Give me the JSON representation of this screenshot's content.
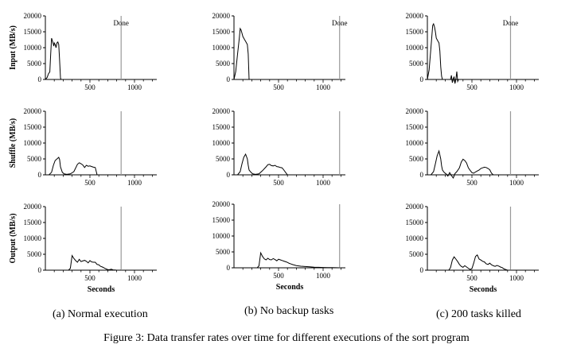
{
  "caption": "Figure 3: Data transfer rates over time for different executions of the sort program",
  "subcaptions": [
    "(a) Normal execution",
    "(b) No backup tasks",
    "(c) 200 tasks killed"
  ],
  "y_labels": [
    "Input (MB/s)",
    "Shuffle (MB/s)",
    "Output (MB/s)"
  ],
  "x_label": "Seconds",
  "done_label": "Done",
  "colors": {
    "line": "#000000",
    "done_line": "#999999"
  },
  "chart_data": [
    {
      "type": "line",
      "panel": "a-input",
      "ylabel": "Input (MB/s)",
      "xlabel": "",
      "xlim": [
        0,
        1250
      ],
      "ylim": [
        0,
        20000
      ],
      "xticks": [
        500,
        1000
      ],
      "yticks": [
        0,
        5000,
        10000,
        15000,
        20000
      ],
      "done_x": 850,
      "x": [
        0,
        20,
        35,
        50,
        60,
        70,
        80,
        90,
        95,
        100,
        110,
        120,
        130,
        140,
        150,
        160,
        170,
        175,
        180,
        190,
        200
      ],
      "y": [
        0,
        600,
        1800,
        2400,
        8000,
        13000,
        12000,
        11000,
        10500,
        11500,
        11000,
        10000,
        11500,
        11800,
        11000,
        6000,
        500,
        0,
        0,
        0,
        0
      ]
    },
    {
      "type": "line",
      "panel": "a-shuffle",
      "ylabel": "Shuffle (MB/s)",
      "xlabel": "",
      "xlim": [
        0,
        1250
      ],
      "ylim": [
        0,
        20000
      ],
      "xticks": [
        500,
        1000
      ],
      "yticks": [
        0,
        5000,
        10000,
        15000,
        20000
      ],
      "done_x": 850,
      "x": [
        0,
        40,
        70,
        90,
        110,
        130,
        150,
        160,
        170,
        190,
        210,
        240,
        280,
        320,
        360,
        380,
        400,
        420,
        440,
        460,
        480,
        500,
        520,
        540,
        560,
        570,
        580
      ],
      "y": [
        0,
        0,
        800,
        3000,
        4500,
        5000,
        5500,
        4800,
        2500,
        800,
        300,
        150,
        300,
        1000,
        3300,
        3800,
        3500,
        3100,
        2300,
        3000,
        2700,
        2800,
        2600,
        2400,
        2300,
        1200,
        0
      ]
    },
    {
      "type": "line",
      "panel": "a-output",
      "ylabel": "Output (MB/s)",
      "xlabel": "Seconds",
      "xlim": [
        0,
        1250
      ],
      "ylim": [
        0,
        20000
      ],
      "xticks": [
        500,
        1000
      ],
      "yticks": [
        0,
        5000,
        10000,
        15000,
        20000
      ],
      "done_x": 850,
      "x": [
        0,
        260,
        280,
        300,
        320,
        340,
        360,
        380,
        400,
        420,
        440,
        460,
        480,
        500,
        520,
        540,
        560,
        580,
        600,
        620,
        640,
        660,
        680,
        700,
        720,
        740,
        760,
        780,
        800,
        850
      ],
      "y": [
        0,
        0,
        600,
        4600,
        3700,
        3000,
        2500,
        3400,
        2700,
        2900,
        3100,
        2800,
        2300,
        3000,
        2600,
        2500,
        2500,
        1800,
        1700,
        1200,
        1000,
        700,
        400,
        200,
        150,
        300,
        100,
        50,
        0,
        0
      ]
    },
    {
      "type": "line",
      "panel": "b-input",
      "ylabel": "",
      "xlabel": "",
      "xlim": [
        0,
        1250
      ],
      "ylim": [
        0,
        20000
      ],
      "xticks": [
        500,
        1000
      ],
      "yticks": [
        0,
        5000,
        10000,
        15000,
        20000
      ],
      "done_x": 1185,
      "x": [
        0,
        20,
        40,
        60,
        70,
        80,
        90,
        100,
        110,
        120,
        130,
        140,
        150,
        160,
        170,
        180
      ],
      "y": [
        0,
        2500,
        8000,
        13000,
        16000,
        15500,
        14500,
        13500,
        13000,
        12500,
        12000,
        11500,
        11000,
        8000,
        0,
        0
      ]
    },
    {
      "type": "line",
      "panel": "b-shuffle",
      "ylabel": "",
      "xlabel": "",
      "xlim": [
        0,
        1250
      ],
      "ylim": [
        0,
        20000
      ],
      "xticks": [
        500,
        1000
      ],
      "yticks": [
        0,
        5000,
        10000,
        15000,
        20000
      ],
      "done_x": 1185,
      "x": [
        0,
        40,
        70,
        90,
        110,
        130,
        150,
        160,
        170,
        190,
        210,
        240,
        280,
        320,
        360,
        380,
        400,
        420,
        440,
        460,
        480,
        500,
        520,
        540,
        560,
        580,
        600
      ],
      "y": [
        0,
        0,
        1000,
        3500,
        5500,
        6500,
        5000,
        3000,
        1500,
        800,
        300,
        150,
        300,
        1300,
        2500,
        3200,
        3300,
        2900,
        2800,
        3000,
        2600,
        2500,
        2300,
        2200,
        1500,
        700,
        0
      ]
    },
    {
      "type": "line",
      "panel": "b-output",
      "ylabel": "",
      "xlabel": "Seconds",
      "xlim": [
        0,
        1250
      ],
      "ylim": [
        0,
        20000
      ],
      "xticks": [
        500,
        1000
      ],
      "yticks": [
        0,
        5000,
        10000,
        15000,
        20000
      ],
      "done_x": 1185,
      "x": [
        0,
        260,
        280,
        300,
        320,
        340,
        360,
        380,
        400,
        420,
        440,
        460,
        480,
        500,
        520,
        540,
        560,
        580,
        600,
        620,
        640,
        660,
        700,
        750,
        800,
        850,
        900,
        950,
        1000,
        1050,
        1100,
        1150,
        1185
      ],
      "y": [
        0,
        0,
        600,
        4700,
        3600,
        2800,
        2500,
        3000,
        2600,
        2500,
        2900,
        2600,
        2200,
        2700,
        2500,
        2300,
        2100,
        1900,
        1700,
        1400,
        1200,
        1000,
        700,
        500,
        400,
        300,
        200,
        150,
        100,
        80,
        50,
        20,
        0
      ]
    },
    {
      "type": "line",
      "panel": "c-input",
      "ylabel": "",
      "xlabel": "",
      "xlim": [
        0,
        1250
      ],
      "ylim": [
        0,
        20000
      ],
      "xticks": [
        500,
        1000
      ],
      "yticks": [
        0,
        5000,
        10000,
        15000,
        20000
      ],
      "done_x": 933,
      "x": [
        0,
        20,
        40,
        60,
        70,
        80,
        90,
        100,
        110,
        120,
        130,
        140,
        150,
        160,
        170,
        180,
        200,
        240,
        260,
        270,
        280,
        290,
        300,
        310,
        320,
        330,
        340,
        350,
        360
      ],
      "y": [
        0,
        3000,
        10000,
        17000,
        17500,
        16500,
        15000,
        13000,
        12500,
        12000,
        11500,
        9000,
        4000,
        1000,
        0,
        0,
        0,
        0,
        0,
        1300,
        -1000,
        200,
        900,
        -1300,
        0,
        2500,
        -600,
        0,
        0
      ]
    },
    {
      "type": "line",
      "panel": "c-shuffle",
      "ylabel": "",
      "xlabel": "",
      "xlim": [
        0,
        1250
      ],
      "ylim": [
        0,
        20000
      ],
      "xticks": [
        500,
        1000
      ],
      "yticks": [
        0,
        5000,
        10000,
        15000,
        20000
      ],
      "done_x": 933,
      "x": [
        0,
        40,
        70,
        90,
        110,
        130,
        150,
        160,
        170,
        190,
        210,
        230,
        250,
        270,
        290,
        310,
        330,
        360,
        380,
        400,
        420,
        440,
        460,
        480,
        500,
        520,
        540,
        560,
        580,
        600,
        620,
        640,
        660,
        680,
        700,
        720,
        740
      ],
      "y": [
        0,
        0,
        1000,
        3500,
        6000,
        7500,
        5000,
        2800,
        1500,
        700,
        300,
        -400,
        700,
        -200,
        -1000,
        400,
        1000,
        2200,
        4000,
        4900,
        4500,
        3700,
        2200,
        1400,
        700,
        500,
        900,
        1200,
        1500,
        2000,
        2200,
        2400,
        2300,
        2000,
        1600,
        500,
        0
      ]
    },
    {
      "type": "line",
      "panel": "c-output",
      "ylabel": "",
      "xlabel": "Seconds",
      "xlim": [
        0,
        1250
      ],
      "ylim": [
        0,
        20000
      ],
      "xticks": [
        500,
        1000
      ],
      "yticks": [
        0,
        5000,
        10000,
        15000,
        20000
      ],
      "done_x": 933,
      "x": [
        0,
        240,
        260,
        280,
        300,
        320,
        340,
        360,
        380,
        400,
        420,
        440,
        460,
        480,
        500,
        520,
        540,
        560,
        580,
        600,
        620,
        640,
        660,
        680,
        700,
        720,
        740,
        760,
        780,
        800,
        820,
        840,
        860,
        880,
        900,
        933
      ],
      "y": [
        0,
        0,
        800,
        3200,
        4200,
        3500,
        2700,
        1800,
        1200,
        900,
        1400,
        1000,
        600,
        200,
        500,
        2200,
        4300,
        4800,
        3500,
        3200,
        2800,
        2600,
        2000,
        1800,
        2200,
        1700,
        1400,
        1200,
        1500,
        1300,
        1000,
        800,
        400,
        200,
        0,
        0
      ]
    }
  ]
}
